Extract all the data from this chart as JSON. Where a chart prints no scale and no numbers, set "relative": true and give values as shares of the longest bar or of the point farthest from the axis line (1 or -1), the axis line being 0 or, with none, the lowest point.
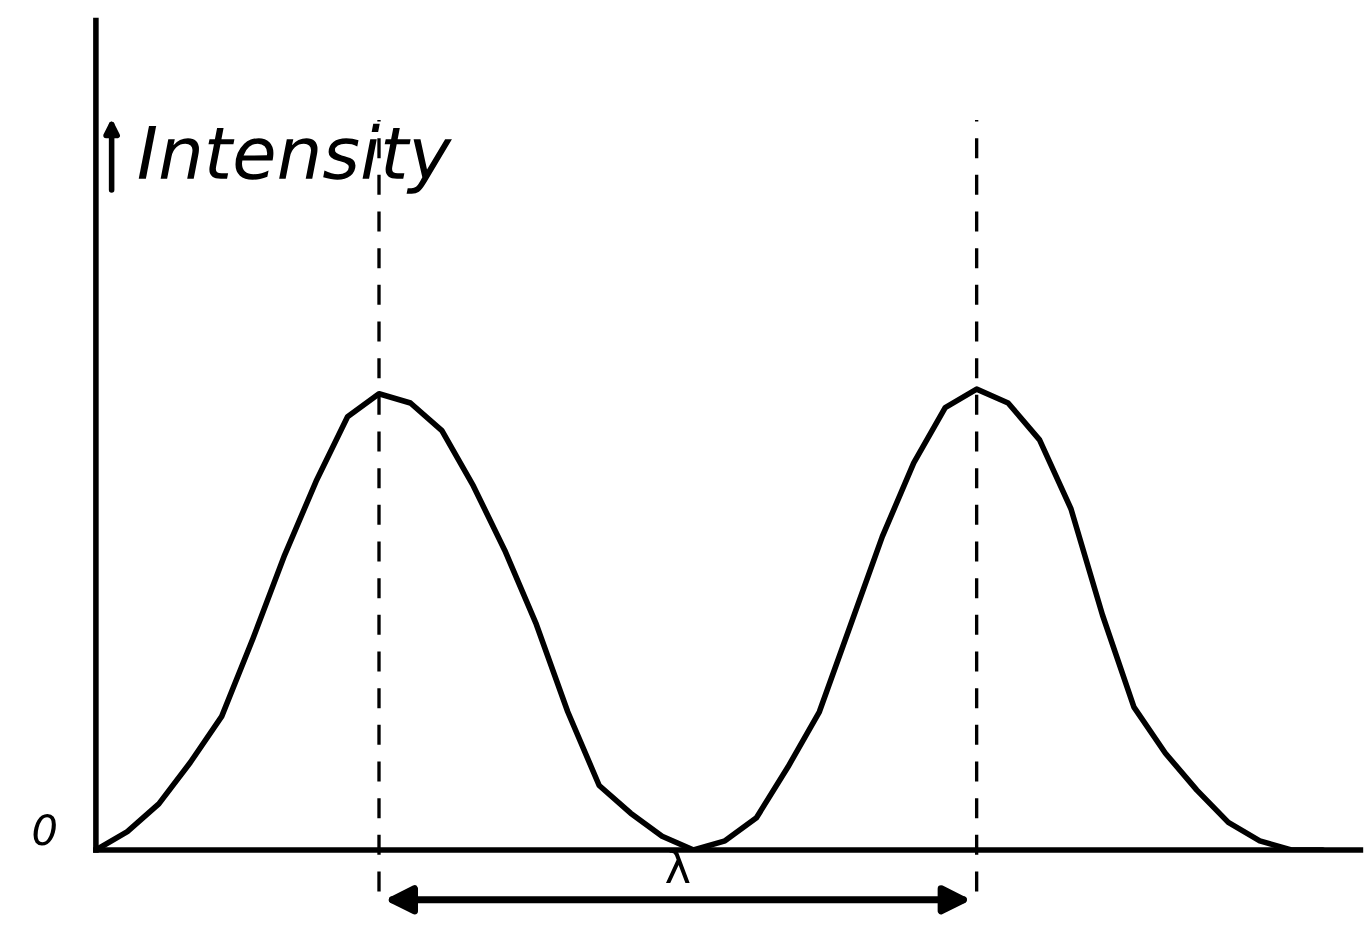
{
  "chart_data": {
    "type": "line",
    "ylabel": "Intensity",
    "relative": true,
    "categories": [
      null,
      null,
      null,
      null,
      null,
      null,
      null,
      null,
      null,
      null,
      null,
      null,
      null,
      null,
      null,
      null,
      null,
      null,
      null,
      null,
      null,
      null,
      null,
      null,
      null,
      null,
      null,
      null,
      null,
      null,
      null,
      null,
      null,
      null,
      null,
      null,
      null,
      null,
      null,
      null
    ],
    "series": [
      {
        "color": "#000000",
        "values": [
          0,
          0.04,
          0.1,
          0.19,
          0.29,
          0.46,
          0.64,
          0.8,
          0.94,
          0.99,
          0.97,
          0.91,
          0.79,
          0.65,
          0.49,
          0.3,
          0.14,
          0.08,
          0.03,
          0,
          0.02,
          0.07,
          0.18,
          0.3,
          0.49,
          0.68,
          0.84,
          0.96,
          1,
          0.97,
          0.89,
          0.74,
          0.51,
          0.31,
          0.21,
          0.13,
          0.06,
          0.02,
          0,
          0
        ]
      }
    ],
    "annotations": [
      "0",
      "λ"
    ],
    "marker": "none",
    "line_style": "solid"
  }
}
